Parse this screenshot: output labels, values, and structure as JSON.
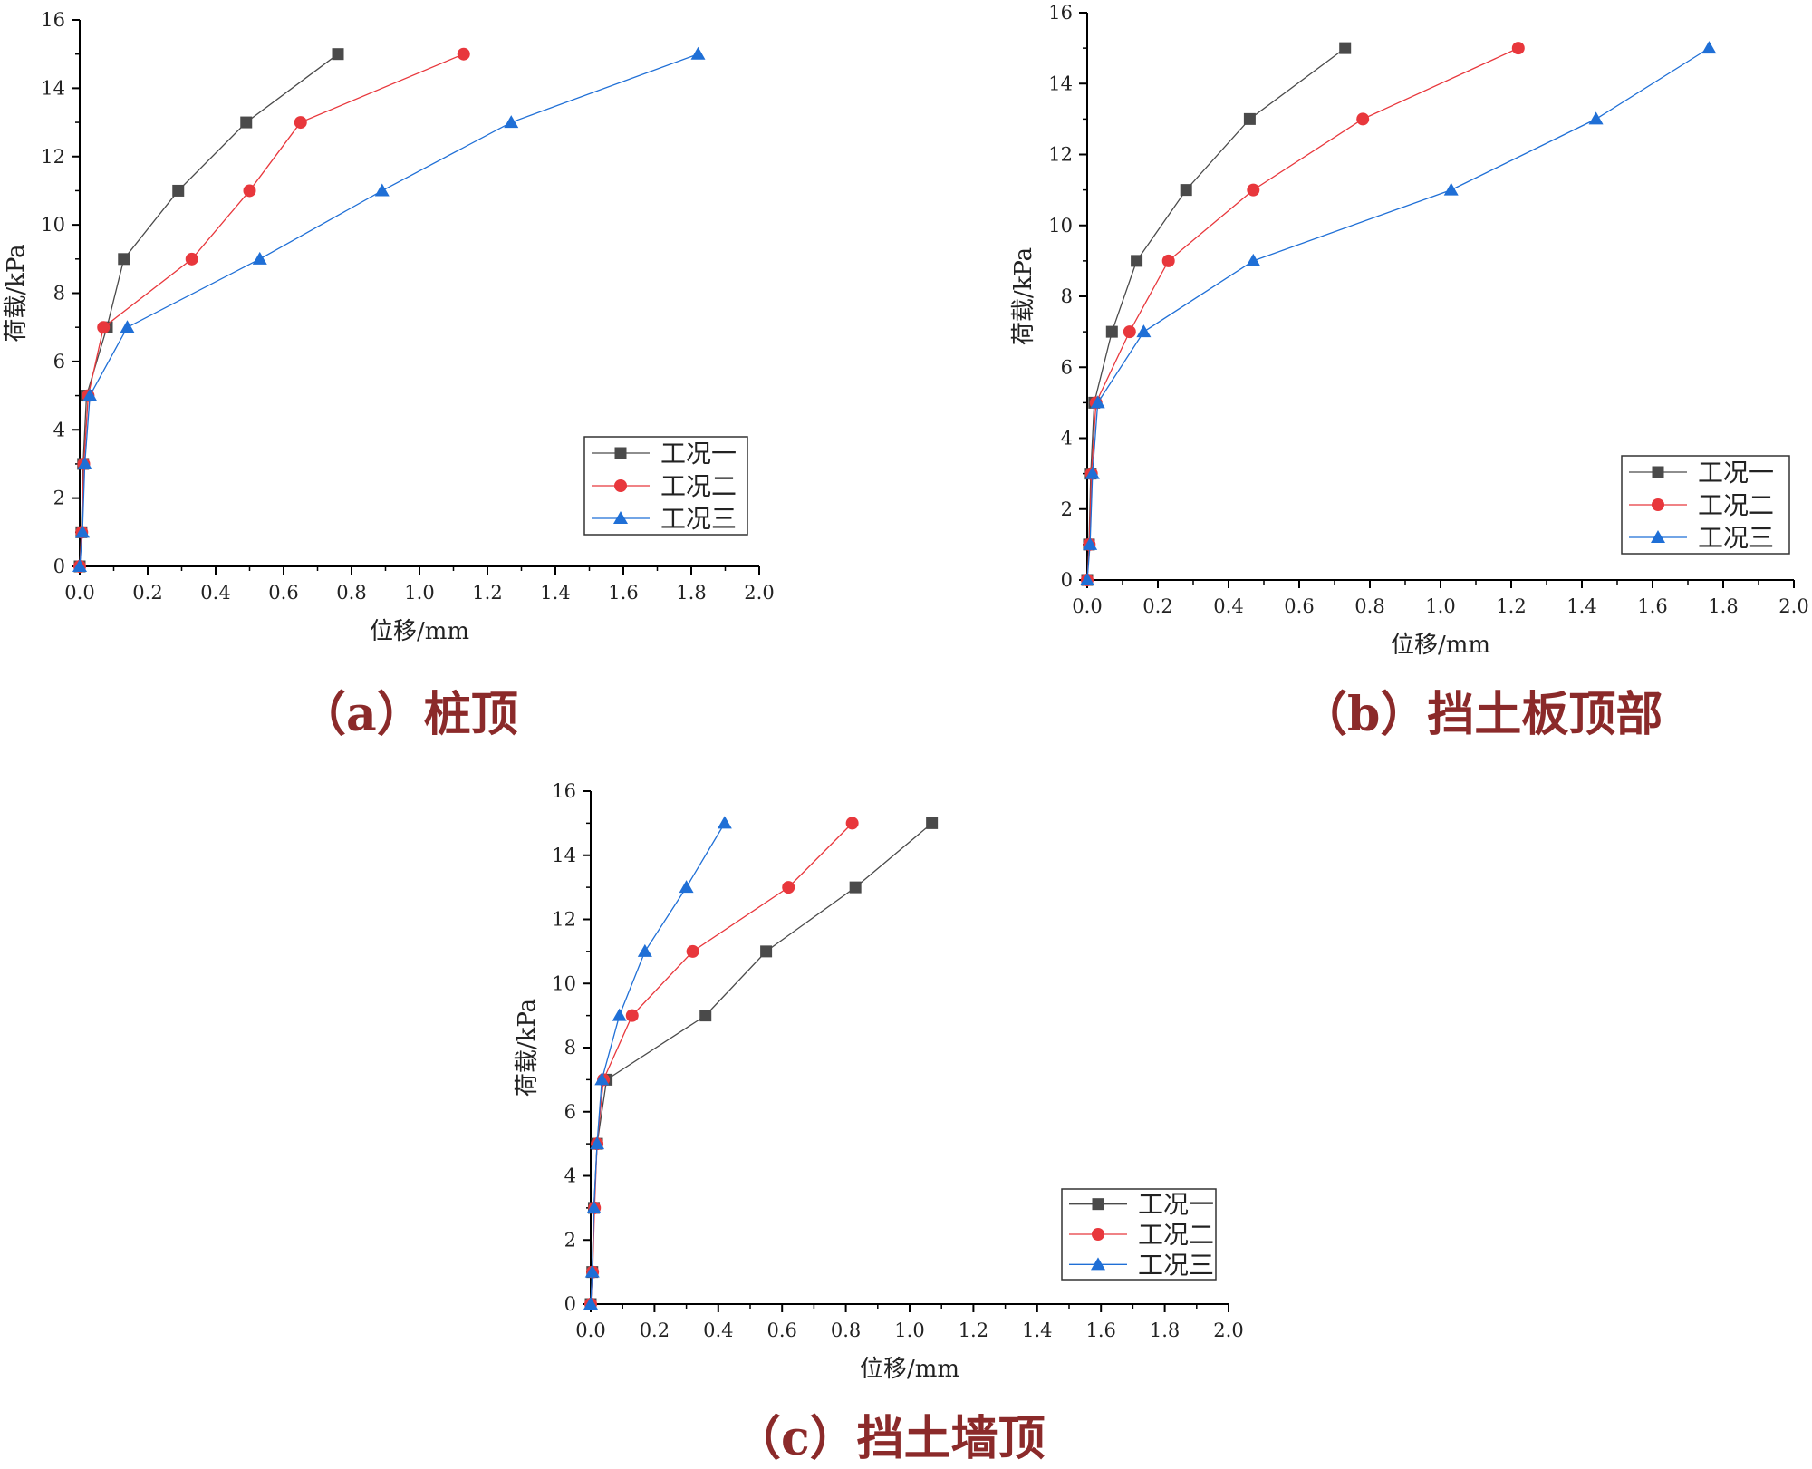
{
  "series_colors": [
    "#4a4a4a",
    "#e8373c",
    "#1f6fd6"
  ],
  "series_markers": [
    "square",
    "circle",
    "triangle"
  ],
  "chart_data": [
    {
      "type": "line",
      "caption": "（a）桩顶",
      "xlabel": "位移/mm",
      "ylabel": "荷载/kPa",
      "xlim": [
        0.0,
        2.0
      ],
      "ylim": [
        0,
        16
      ],
      "xticks": [
        "0.0",
        "0.2",
        "0.4",
        "0.6",
        "0.8",
        "1.0",
        "1.2",
        "1.4",
        "1.6",
        "1.8",
        "2.0"
      ],
      "yticks": [
        "0",
        "2",
        "4",
        "6",
        "8",
        "10",
        "12",
        "14",
        "16"
      ],
      "legend_position": "lower-right",
      "grid": false,
      "series": [
        {
          "name": "工况一",
          "x": [
            0.0,
            0.005,
            0.01,
            0.02,
            0.08,
            0.13,
            0.29,
            0.49,
            0.76
          ],
          "y": [
            0,
            1,
            3,
            5,
            7,
            9,
            11,
            13,
            15
          ]
        },
        {
          "name": "工况二",
          "x": [
            0.0,
            0.006,
            0.012,
            0.025,
            0.07,
            0.33,
            0.5,
            0.65,
            1.13
          ],
          "y": [
            0,
            1,
            3,
            5,
            7,
            9,
            11,
            13,
            15
          ]
        },
        {
          "name": "工况三",
          "x": [
            0.0,
            0.008,
            0.015,
            0.03,
            0.14,
            0.53,
            0.89,
            1.27,
            1.82
          ],
          "y": [
            0,
            1,
            3,
            5,
            7,
            9,
            11,
            13,
            15
          ]
        }
      ]
    },
    {
      "type": "line",
      "caption": "（b）挡土板顶部",
      "xlabel": "位移/mm",
      "ylabel": "荷载/kPa",
      "xlim": [
        0.0,
        2.0
      ],
      "ylim": [
        0,
        16
      ],
      "xticks": [
        "0.0",
        "0.2",
        "0.4",
        "0.6",
        "0.8",
        "1.0",
        "1.2",
        "1.4",
        "1.6",
        "1.8",
        "2.0"
      ],
      "yticks": [
        "0",
        "2",
        "4",
        "6",
        "8",
        "10",
        "12",
        "14",
        "16"
      ],
      "legend_position": "lower-right",
      "grid": false,
      "series": [
        {
          "name": "工况一",
          "x": [
            0.0,
            0.005,
            0.01,
            0.02,
            0.07,
            0.14,
            0.28,
            0.46,
            0.73
          ],
          "y": [
            0,
            1,
            3,
            5,
            7,
            9,
            11,
            13,
            15
          ]
        },
        {
          "name": "工况二",
          "x": [
            0.0,
            0.006,
            0.012,
            0.025,
            0.12,
            0.23,
            0.47,
            0.78,
            1.22
          ],
          "y": [
            0,
            1,
            3,
            5,
            7,
            9,
            11,
            13,
            15
          ]
        },
        {
          "name": "工况三",
          "x": [
            0.0,
            0.008,
            0.015,
            0.03,
            0.16,
            0.47,
            1.03,
            1.44,
            1.76
          ],
          "y": [
            0,
            1,
            3,
            5,
            7,
            9,
            11,
            13,
            15
          ]
        }
      ]
    },
    {
      "type": "line",
      "caption": "（c）挡土墙顶",
      "xlabel": "位移/mm",
      "ylabel": "荷载/kPa",
      "xlim": [
        0.0,
        2.0
      ],
      "ylim": [
        0,
        16
      ],
      "xticks": [
        "0.0",
        "0.2",
        "0.4",
        "0.6",
        "0.8",
        "1.0",
        "1.2",
        "1.4",
        "1.6",
        "1.8",
        "2.0"
      ],
      "yticks": [
        "0",
        "2",
        "4",
        "6",
        "8",
        "10",
        "12",
        "14",
        "16"
      ],
      "legend_position": "lower-right",
      "grid": false,
      "series": [
        {
          "name": "工况一",
          "x": [
            0.0,
            0.005,
            0.01,
            0.02,
            0.05,
            0.36,
            0.55,
            0.83,
            1.07
          ],
          "y": [
            0,
            1,
            3,
            5,
            7,
            9,
            11,
            13,
            15
          ]
        },
        {
          "name": "工况二",
          "x": [
            0.0,
            0.006,
            0.012,
            0.02,
            0.04,
            0.13,
            0.32,
            0.62,
            0.82
          ],
          "y": [
            0,
            1,
            3,
            5,
            7,
            9,
            11,
            13,
            15
          ]
        },
        {
          "name": "工况三",
          "x": [
            0.0,
            0.005,
            0.01,
            0.02,
            0.035,
            0.09,
            0.17,
            0.3,
            0.42
          ],
          "y": [
            0,
            1,
            3,
            5,
            7,
            9,
            11,
            13,
            15
          ]
        }
      ]
    }
  ]
}
